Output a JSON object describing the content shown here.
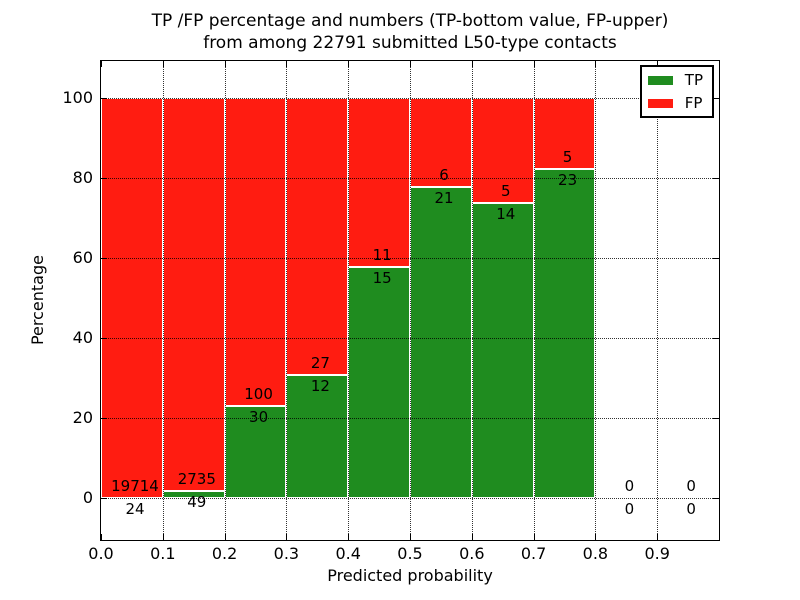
{
  "title": {
    "line1": "TP /FP percentage and numbers (TP-bottom value, FP-upper)",
    "line2": "from among 22791 submitted L50-type contacts"
  },
  "axes": {
    "xlabel": "Predicted probability",
    "ylabel": "Percentage",
    "x_tick_labels": [
      "0.0",
      "0.1",
      "0.2",
      "0.3",
      "0.4",
      "0.5",
      "0.6",
      "0.7",
      "0.8",
      "0.9"
    ],
    "y_tick_labels": [
      "0",
      "20",
      "40",
      "60",
      "80",
      "100"
    ]
  },
  "legend": {
    "position": "upper right",
    "items": [
      {
        "label": "TP",
        "color": "#1f8c1f"
      },
      {
        "label": "FP",
        "color": "#ff1c11"
      }
    ]
  },
  "chart_data": {
    "type": "bar",
    "stacked": true,
    "values_unit": "percent of bin total (TP% bottom, FP% top, stacked to 100)",
    "title": "TP /FP percentage and numbers (TP-bottom value, FP-upper) from among 22791 submitted L50-type contacts",
    "xlabel": "Predicted probability",
    "ylabel": "Percentage",
    "xlim": [
      0.0,
      1.0
    ],
    "ylim": [
      -10,
      110
    ],
    "x_ticks": [
      0.0,
      0.1,
      0.2,
      0.3,
      0.4,
      0.5,
      0.6,
      0.7,
      0.8,
      0.9
    ],
    "y_ticks": [
      0,
      20,
      40,
      60,
      80,
      100
    ],
    "grid": "dotted",
    "legend_position": "upper right",
    "series": [
      {
        "name": "TP",
        "color": "#1f8c1f"
      },
      {
        "name": "FP",
        "color": "#ff1c11"
      }
    ],
    "total_contacts": 22791,
    "bins": [
      {
        "x_range": [
          0.0,
          0.1
        ],
        "tp": 24,
        "fp": 19714,
        "tp_percent": 0.12
      },
      {
        "x_range": [
          0.1,
          0.2
        ],
        "tp": 49,
        "fp": 2735,
        "tp_percent": 1.76
      },
      {
        "x_range": [
          0.2,
          0.3
        ],
        "tp": 30,
        "fp": 100,
        "tp_percent": 23.08
      },
      {
        "x_range": [
          0.3,
          0.4
        ],
        "tp": 12,
        "fp": 27,
        "tp_percent": 30.77
      },
      {
        "x_range": [
          0.4,
          0.5
        ],
        "tp": 15,
        "fp": 11,
        "tp_percent": 57.69
      },
      {
        "x_range": [
          0.5,
          0.6
        ],
        "tp": 21,
        "fp": 6,
        "tp_percent": 77.78
      },
      {
        "x_range": [
          0.6,
          0.7
        ],
        "tp": 14,
        "fp": 5,
        "tp_percent": 73.68
      },
      {
        "x_range": [
          0.7,
          0.8
        ],
        "tp": 23,
        "fp": 5,
        "tp_percent": 82.14
      },
      {
        "x_range": [
          0.8,
          0.9
        ],
        "tp": 0,
        "fp": 0,
        "tp_percent": null
      },
      {
        "x_range": [
          0.9,
          1.0
        ],
        "tp": 0,
        "fp": 0,
        "tp_percent": null
      }
    ]
  }
}
